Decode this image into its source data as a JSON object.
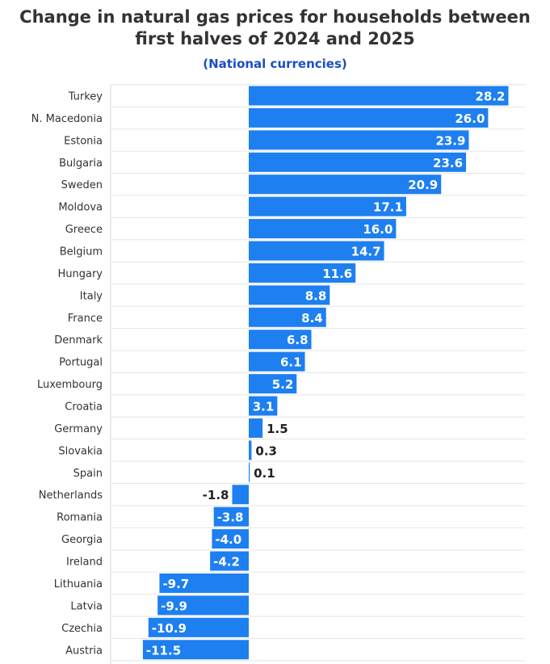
{
  "chart_data": {
    "type": "bar",
    "orientation": "horizontal",
    "title_lines": [
      "Change in natural gas prices for households between",
      "first halves of 2024 and 2025"
    ],
    "subtitle": "(National currencies)",
    "categories": [
      "Turkey",
      "N. Macedonia",
      "Estonia",
      "Bulgaria",
      "Sweden",
      "Moldova",
      "Greece",
      "Belgium",
      "Hungary",
      "Italy",
      "France",
      "Denmark",
      "Portugal",
      "Luxembourg",
      "Croatia",
      "Germany",
      "Slovakia",
      "Spain",
      "Netherlands",
      "Romania",
      "Georgia",
      "Ireland",
      "Lithuania",
      "Latvia",
      "Czechia",
      "Austria"
    ],
    "values": [
      28.2,
      26.0,
      23.9,
      23.6,
      20.9,
      17.1,
      16.0,
      14.7,
      11.6,
      8.8,
      8.4,
      6.8,
      6.1,
      5.2,
      3.1,
      1.5,
      0.3,
      0.1,
      -1.8,
      -3.8,
      -4.0,
      -4.2,
      -9.7,
      -9.9,
      -10.9,
      -11.5
    ],
    "labels": [
      "28.2",
      "26.0",
      "23.9",
      "23.6",
      "20.9",
      "17.1",
      "16.0",
      "14.7",
      "11.6",
      "8.8",
      "8.4",
      "6.8",
      "6.1",
      "5.2",
      "3.1",
      "1.5",
      "0.3",
      "0.1",
      "-1.8",
      "-3.8",
      "-4.0",
      "-4.2",
      "-9.7",
      "-9.9",
      "-10.9",
      "-11.5"
    ],
    "xlim": [
      -15,
      30
    ],
    "legend": "none",
    "grid": "horizontal",
    "colors": {
      "bar": "#1e7ff0",
      "label_inside": "#ffffff",
      "label_outside": "#222222",
      "grid": "#e6e6e6"
    }
  }
}
